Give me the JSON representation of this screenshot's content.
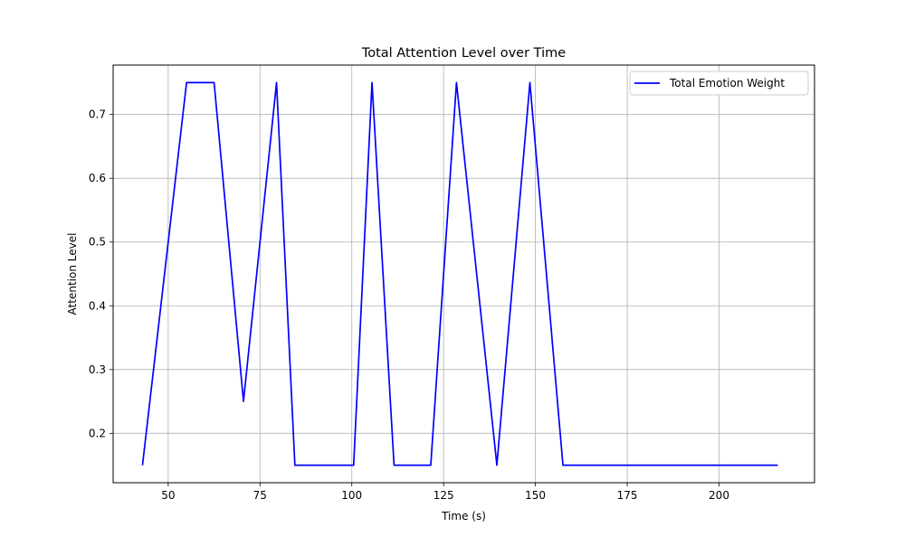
{
  "chart_data": {
    "type": "line",
    "title": "Total Attention Level over Time",
    "xlabel": "Time (s)",
    "ylabel": "Attention Level",
    "xlim": [
      35,
      226
    ],
    "ylim": [
      0.1225,
      0.7775
    ],
    "x_ticks": [
      50,
      75,
      100,
      125,
      150,
      175,
      200
    ],
    "y_ticks": [
      0.2,
      0.3,
      0.4,
      0.5,
      0.6,
      0.7
    ],
    "grid": true,
    "legend_position": "top-right",
    "series": [
      {
        "name": "Total Emotion Weight",
        "color": "#0000ff",
        "x": [
          43,
          55,
          62.5,
          70.5,
          79.5,
          84.5,
          100.5,
          105.5,
          111.5,
          121.5,
          128.5,
          139.5,
          148.5,
          157.5,
          216
        ],
        "y": [
          0.15,
          0.75,
          0.75,
          0.25,
          0.75,
          0.15,
          0.15,
          0.75,
          0.15,
          0.15,
          0.75,
          0.15,
          0.75,
          0.15,
          0.15
        ]
      }
    ]
  }
}
